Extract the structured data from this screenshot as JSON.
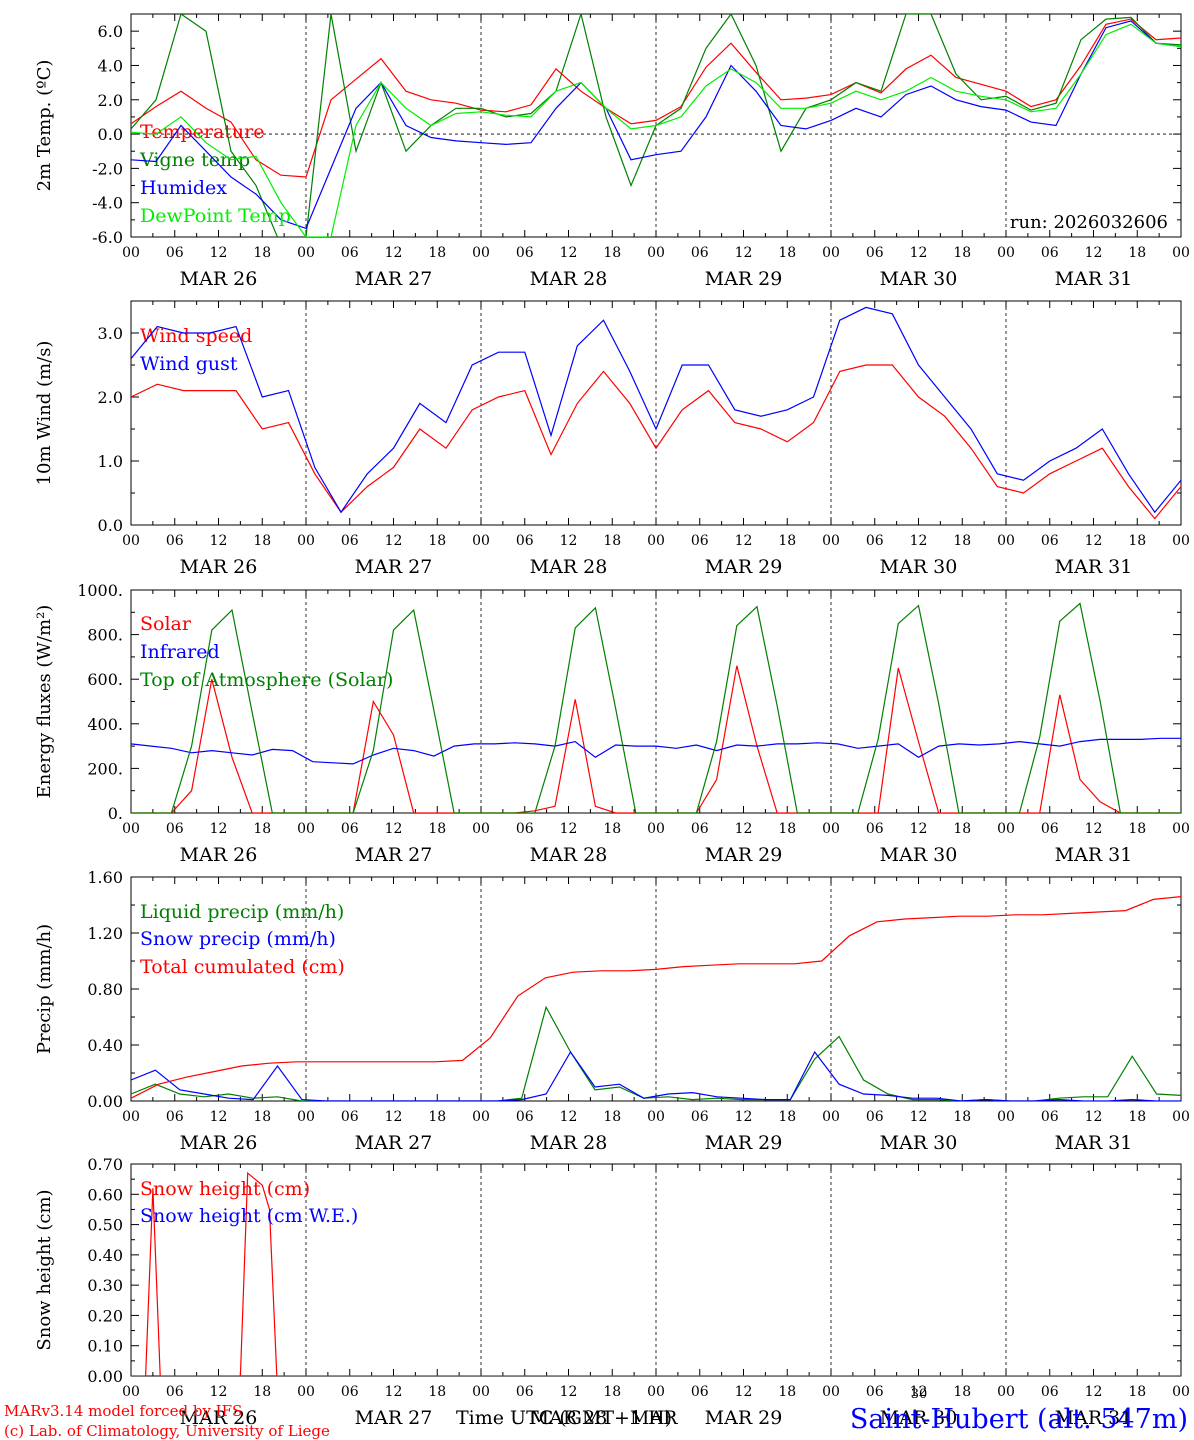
{
  "run_label": "run: 2026032606",
  "days": [
    "MAR 26",
    "MAR 27",
    "MAR 28",
    "MAR 29",
    "MAR 30",
    "MAR 31"
  ],
  "hour_ticks": [
    "00",
    "06",
    "12",
    "18",
    "00",
    "06",
    "12",
    "18",
    "00",
    "06",
    "12",
    "18",
    "00",
    "06",
    "12",
    "18",
    "00",
    "06",
    "12",
    "18",
    "00",
    "06",
    "12",
    "18",
    "00"
  ],
  "footer": {
    "model_line": "MARv3.14 model forced by IFS",
    "lab_line": "(c) Lab. of Climatology, University of Liege",
    "time_label": "Time UTC (GMT+1 H)",
    "overlap_label": "MAR",
    "small_number": "30",
    "station": "Saint-Hubert (alt. 547m)"
  },
  "colors": {
    "red": "#ff0000",
    "green": "#008000",
    "blue": "#0000ff",
    "lightgreen": "#00ee00",
    "black": "#000000"
  },
  "chart_data": [
    {
      "type": "line",
      "ylabel": "2m Temp. (ºC)",
      "ylim": [
        -6,
        7
      ],
      "yticks": [
        -6,
        -4,
        -2,
        0,
        2,
        4,
        6
      ],
      "ytick_labels": [
        "-6.0",
        "-4.0",
        "-2.0",
        "0.0",
        "2.0",
        "4.0",
        "6.0"
      ],
      "zero_line": true,
      "x_step_hours": 6,
      "series": [
        {
          "name": "Temperature",
          "color": "#ff0000",
          "values": [
            0.6,
            1.6,
            2.5,
            1.5,
            0.7,
            -1.5,
            -2.4,
            -2.5,
            2.0,
            3.2,
            4.4,
            2.5,
            2.0,
            1.8,
            1.4,
            1.3,
            1.7,
            3.8,
            2.5,
            1.5,
            0.6,
            0.8,
            1.6,
            3.9,
            5.3,
            3.6,
            2.0,
            2.1,
            2.3,
            3.0,
            2.4,
            3.8,
            4.6,
            3.3,
            2.9,
            2.5,
            1.6,
            2.0,
            4.0,
            6.4,
            6.7,
            5.5,
            5.6
          ]
        },
        {
          "name": "Vigne temp",
          "color": "#008000",
          "values": [
            0.3,
            2.0,
            7.0,
            6.0,
            -1.0,
            -3.0,
            -6.5,
            -6.0,
            7.0,
            -1.0,
            3.0,
            -1.0,
            0.5,
            1.5,
            1.5,
            1.0,
            1.2,
            2.5,
            7.0,
            1.0,
            -3.0,
            0.5,
            1.5,
            5.0,
            7.0,
            4.0,
            -1.0,
            1.5,
            2.0,
            3.0,
            2.5,
            7.0,
            7.0,
            3.5,
            2.0,
            2.2,
            1.4,
            1.8,
            5.5,
            6.7,
            6.8,
            5.3,
            5.2
          ]
        },
        {
          "name": "Humidex",
          "color": "#0000ff",
          "values": [
            -1.5,
            -1.6,
            0.5,
            -1.0,
            -2.5,
            -3.5,
            -5.0,
            -5.5,
            -2.0,
            1.5,
            3.0,
            0.5,
            -0.2,
            -0.4,
            -0.5,
            -0.6,
            -0.5,
            1.5,
            3.0,
            1.5,
            -1.5,
            -1.2,
            -1.0,
            1.0,
            4.0,
            2.5,
            0.5,
            0.3,
            0.8,
            1.5,
            1.0,
            2.3,
            2.8,
            2.0,
            1.6,
            1.4,
            0.7,
            0.5,
            3.5,
            6.2,
            6.6,
            5.3,
            5.1
          ]
        },
        {
          "name": "DewPoint Temp",
          "color": "#00ee00",
          "values": [
            0.1,
            0.0,
            1.0,
            -0.5,
            -1.5,
            -1.3,
            -4.0,
            -6.0,
            -6.0,
            0.5,
            3.0,
            1.5,
            0.5,
            1.2,
            1.3,
            1.1,
            1.0,
            2.5,
            3.0,
            1.5,
            0.3,
            0.5,
            1.0,
            2.8,
            3.8,
            3.0,
            1.5,
            1.5,
            1.8,
            2.5,
            2.0,
            2.5,
            3.3,
            2.5,
            2.2,
            2.0,
            1.3,
            1.5,
            3.5,
            5.8,
            6.4,
            5.3,
            5.1
          ]
        }
      ]
    },
    {
      "type": "line",
      "ylabel": "10m Wind (m/s)",
      "ylim": [
        0,
        3.5
      ],
      "yticks": [
        0,
        1,
        2,
        3
      ],
      "ytick_labels": [
        "0.0",
        "1.0",
        "2.0",
        "3.0"
      ],
      "x_step_hours": 6,
      "series": [
        {
          "name": "Wind speed",
          "color": "#ff0000",
          "values": [
            2.0,
            2.2,
            2.1,
            2.1,
            2.1,
            1.5,
            1.6,
            0.8,
            0.2,
            0.6,
            0.9,
            1.5,
            1.2,
            1.8,
            2.0,
            2.1,
            1.1,
            1.9,
            2.4,
            1.9,
            1.2,
            1.8,
            2.1,
            1.6,
            1.5,
            1.3,
            1.6,
            2.4,
            2.5,
            2.5,
            2.0,
            1.7,
            1.2,
            0.6,
            0.5,
            0.8,
            1.0,
            1.2,
            0.6,
            0.1,
            0.6
          ]
        },
        {
          "name": "Wind gust",
          "color": "#0000ff",
          "values": [
            2.6,
            3.1,
            3.0,
            3.0,
            3.1,
            2.0,
            2.1,
            0.9,
            0.2,
            0.8,
            1.2,
            1.9,
            1.6,
            2.5,
            2.7,
            2.7,
            1.4,
            2.8,
            3.2,
            2.4,
            1.5,
            2.5,
            2.5,
            1.8,
            1.7,
            1.8,
            2.0,
            3.2,
            3.4,
            3.3,
            2.5,
            2.0,
            1.5,
            0.8,
            0.7,
            1.0,
            1.2,
            1.5,
            0.8,
            0.2,
            0.7
          ]
        }
      ]
    },
    {
      "type": "line",
      "ylabel": "Energy fluxes (W/m²)",
      "ylim": [
        0,
        1000
      ],
      "yticks": [
        0,
        200,
        400,
        600,
        800,
        1000
      ],
      "ytick_labels": [
        "0.",
        "200.",
        "400.",
        "600.",
        "800.",
        "1000."
      ],
      "x_step_hours": 3,
      "series": [
        {
          "name": "Solar",
          "color": "#ff0000",
          "values": [
            0,
            0,
            0,
            100,
            600,
            250,
            0,
            0,
            0,
            0,
            0,
            0,
            500,
            350,
            0,
            0,
            0,
            0,
            0,
            0,
            10,
            30,
            510,
            30,
            0,
            0,
            0,
            0,
            0,
            150,
            660,
            300,
            0,
            0,
            0,
            0,
            0,
            0,
            650,
            320,
            0,
            0,
            0,
            0,
            0,
            0,
            530,
            150,
            50,
            0,
            0,
            0,
            0
          ]
        },
        {
          "name": "Infrared",
          "color": "#0000ff",
          "values": [
            310,
            300,
            290,
            270,
            280,
            270,
            260,
            285,
            280,
            230,
            225,
            220,
            260,
            290,
            280,
            255,
            300,
            310,
            310,
            315,
            310,
            300,
            320,
            250,
            305,
            300,
            300,
            290,
            305,
            280,
            305,
            300,
            310,
            310,
            315,
            310,
            290,
            300,
            310,
            250,
            300,
            310,
            305,
            310,
            320,
            310,
            300,
            320,
            330,
            330,
            330,
            335,
            335
          ]
        },
        {
          "name": "Top of Atmosphere (Solar)",
          "color": "#008000",
          "values": [
            0,
            0,
            0,
            300,
            820,
            910,
            450,
            0,
            0,
            0,
            0,
            0,
            280,
            820,
            910,
            460,
            0,
            0,
            0,
            0,
            0,
            300,
            830,
            920,
            470,
            0,
            0,
            0,
            0,
            320,
            840,
            925,
            480,
            0,
            0,
            0,
            0,
            330,
            850,
            930,
            490,
            0,
            0,
            0,
            0,
            340,
            860,
            940,
            500,
            0,
            0,
            0,
            0
          ]
        }
      ]
    },
    {
      "type": "line",
      "ylabel": "Precip (mm/h)",
      "ylim": [
        0,
        1.6
      ],
      "yticks": [
        0,
        0.4,
        0.8,
        1.2,
        1.6
      ],
      "ytick_labels": [
        "0.00",
        "0.40",
        "0.80",
        "1.20",
        "1.60"
      ],
      "x_step_hours": 3,
      "series": [
        {
          "name": "Liquid precip (mm/h)",
          "color": "#008000",
          "values": [
            0.05,
            0.12,
            0.05,
            0.03,
            0.05,
            0.02,
            0.03,
            0,
            0,
            0,
            0,
            0,
            0,
            0,
            0,
            0,
            0.02,
            0.67,
            0.35,
            0.08,
            0.1,
            0.02,
            0.03,
            0.01,
            0.02,
            0.01,
            0.01,
            0.01,
            0.3,
            0.46,
            0.15,
            0.05,
            0.01,
            0.01,
            0,
            0.01,
            0,
            0,
            0.02,
            0.03,
            0.03,
            0.32,
            0.05,
            0.04
          ]
        },
        {
          "name": "Snow precip (mm/h)",
          "color": "#0000ff",
          "values": [
            0.15,
            0.22,
            0.08,
            0.05,
            0.02,
            0.01,
            0.25,
            0.01,
            0,
            0,
            0,
            0,
            0,
            0,
            0,
            0,
            0.01,
            0.05,
            0.35,
            0.1,
            0.12,
            0.02,
            0.05,
            0.06,
            0.03,
            0.02,
            0.01,
            0.01,
            0.35,
            0.12,
            0.05,
            0.04,
            0.02,
            0.02,
            0,
            0.01,
            0,
            0,
            0.01,
            0,
            0,
            0.01,
            0,
            0
          ]
        },
        {
          "name": "Total cumulated (cm)",
          "color": "#ff0000",
          "values": [
            0.02,
            0.12,
            0.17,
            0.21,
            0.25,
            0.27,
            0.28,
            0.28,
            0.28,
            0.28,
            0.28,
            0.28,
            0.29,
            0.45,
            0.75,
            0.88,
            0.92,
            0.93,
            0.93,
            0.94,
            0.96,
            0.97,
            0.98,
            0.98,
            0.98,
            1.0,
            1.18,
            1.28,
            1.3,
            1.31,
            1.32,
            1.32,
            1.33,
            1.33,
            1.34,
            1.35,
            1.36,
            1.44,
            1.46
          ]
        }
      ]
    },
    {
      "type": "line",
      "ylabel": "Snow height (cm)",
      "ylim": [
        0,
        0.7
      ],
      "yticks": [
        0,
        0.1,
        0.2,
        0.3,
        0.4,
        0.5,
        0.6,
        0.7
      ],
      "ytick_labels": [
        "0.00",
        "0.10",
        "0.20",
        "0.30",
        "0.40",
        "0.50",
        "0.60",
        "0.70"
      ],
      "series": [
        {
          "name": "Snow height (cm)",
          "color": "#ff0000",
          "points": [
            [
              0,
              0
            ],
            [
              2,
              0
            ],
            [
              3,
              0.62
            ],
            [
              4,
              0
            ],
            [
              15,
              0
            ],
            [
              16,
              0.67
            ],
            [
              18,
              0.63
            ],
            [
              19,
              0.55
            ],
            [
              20,
              0
            ],
            [
              144,
              0
            ]
          ]
        },
        {
          "name": "Snow height (cm W.E.)",
          "color": "#0000ff",
          "points": []
        }
      ]
    }
  ]
}
